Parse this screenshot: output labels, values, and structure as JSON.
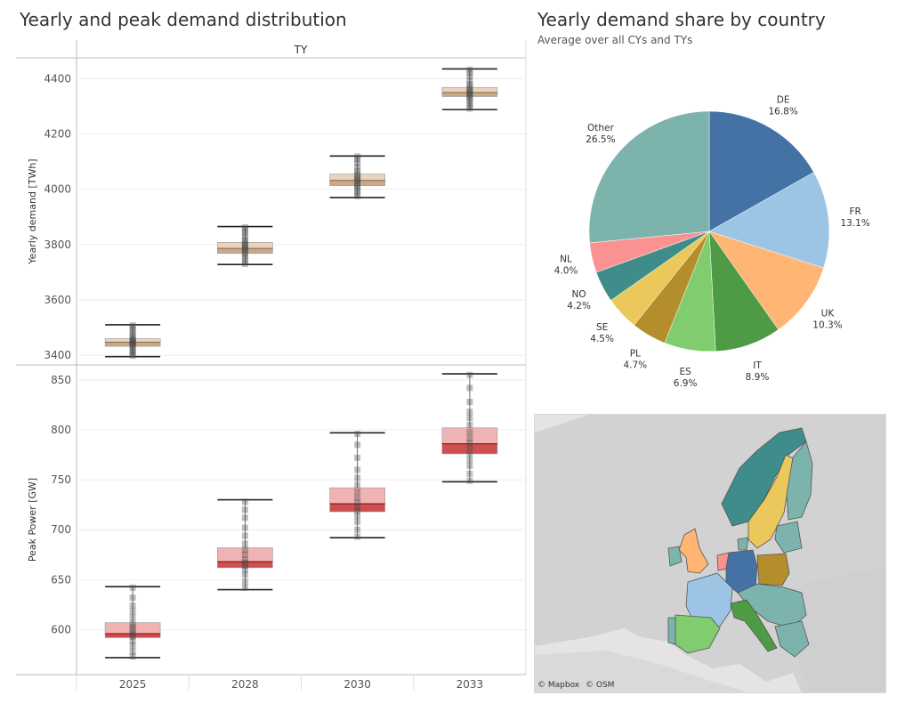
{
  "left_panel": {
    "title": "Yearly and peak demand distribution",
    "column_header": "TY"
  },
  "right_panel": {
    "title": "Yearly demand share by country",
    "subtitle": "Average over all CYs and TYs"
  },
  "map": {
    "attribution_mapbox": "© Mapbox",
    "attribution_osm": "© OSM"
  },
  "chart_data": [
    {
      "type": "box",
      "name": "yearly_demand",
      "ylabel": "Yearly demand [TWh]",
      "categories": [
        "2025",
        "2028",
        "2030",
        "2033"
      ],
      "ylim": [
        3365,
        4475
      ],
      "yticks": [
        3400,
        3600,
        3800,
        4000,
        4200,
        4400
      ],
      "colors": {
        "box_light": "#e8d3bf",
        "box_dark": "#c9a78a",
        "median": "#8a6a4a",
        "whisker": "#222222"
      },
      "boxes": [
        {
          "category": "2025",
          "min": 3395,
          "q1": 3432,
          "median": 3447,
          "q3": 3460,
          "max": 3510,
          "points": [
            3398,
            3405,
            3412,
            3420,
            3428,
            3435,
            3440,
            3445,
            3448,
            3452,
            3456,
            3462,
            3470,
            3480,
            3490,
            3500,
            3508
          ]
        },
        {
          "category": "2028",
          "min": 3728,
          "q1": 3768,
          "median": 3786,
          "q3": 3808,
          "max": 3865,
          "points": [
            3730,
            3740,
            3752,
            3762,
            3770,
            3778,
            3784,
            3790,
            3796,
            3802,
            3810,
            3818,
            3830,
            3842,
            3852,
            3862
          ]
        },
        {
          "category": "2030",
          "min": 3970,
          "q1": 4013,
          "median": 4032,
          "q3": 4055,
          "max": 4120,
          "points": [
            3975,
            3985,
            3995,
            4005,
            4012,
            4020,
            4028,
            4034,
            4040,
            4048,
            4056,
            4066,
            4080,
            4095,
            4108,
            4118
          ]
        },
        {
          "category": "2033",
          "min": 4288,
          "q1": 4335,
          "median": 4350,
          "q3": 4368,
          "max": 4435,
          "points": [
            4292,
            4302,
            4312,
            4322,
            4330,
            4338,
            4345,
            4350,
            4356,
            4362,
            4370,
            4380,
            4392,
            4408,
            4420,
            4432
          ]
        }
      ]
    },
    {
      "type": "box",
      "name": "peak_power",
      "ylabel": "Peak Power [GW]",
      "categories": [
        "2025",
        "2028",
        "2030",
        "2033"
      ],
      "ylim": [
        555,
        865
      ],
      "yticks": [
        600,
        650,
        700,
        750,
        800,
        850
      ],
      "colors": {
        "box_light": "#f0b3b3",
        "box_dark": "#cc5050",
        "median": "#8b0000",
        "whisker": "#222222"
      },
      "boxes": [
        {
          "category": "2025",
          "min": 572,
          "q1": 592,
          "median": 596,
          "q3": 607,
          "max": 643,
          "points": [
            573,
            578,
            584,
            589,
            593,
            595,
            597,
            600,
            603,
            606,
            612,
            618,
            624,
            632,
            642
          ]
        },
        {
          "category": "2028",
          "min": 640,
          "q1": 662,
          "median": 668,
          "q3": 682,
          "max": 730,
          "points": [
            642,
            648,
            655,
            660,
            664,
            667,
            670,
            675,
            680,
            686,
            694,
            702,
            712,
            720,
            728
          ]
        },
        {
          "category": "2030",
          "min": 692,
          "q1": 718,
          "median": 726,
          "q3": 742,
          "max": 797,
          "points": [
            693,
            700,
            708,
            714,
            719,
            723,
            727,
            732,
            738,
            745,
            752,
            760,
            772,
            785,
            796
          ]
        },
        {
          "category": "2033",
          "min": 748,
          "q1": 776,
          "median": 786,
          "q3": 802,
          "max": 856,
          "points": [
            749,
            756,
            764,
            770,
            776,
            782,
            787,
            792,
            798,
            805,
            812,
            818,
            828,
            842,
            855
          ]
        }
      ]
    },
    {
      "type": "pie",
      "name": "demand_share",
      "slices": [
        {
          "label": "DE",
          "value": 16.8,
          "text": "16.8%",
          "color": "#4472a4"
        },
        {
          "label": "FR",
          "value": 13.1,
          "text": "13.1%",
          "color": "#9cc5e5"
        },
        {
          "label": "UK",
          "value": 10.3,
          "text": "10.3%",
          "color": "#ffb574"
        },
        {
          "label": "IT",
          "value": 8.9,
          "text": "8.9%",
          "color": "#4f9a44"
        },
        {
          "label": "ES",
          "value": 6.9,
          "text": "6.9%",
          "color": "#80cc6e"
        },
        {
          "label": "PL",
          "value": 4.7,
          "text": "4.7%",
          "color": "#b38e2b"
        },
        {
          "label": "SE",
          "value": 4.5,
          "text": "4.5%",
          "color": "#eac85b"
        },
        {
          "label": "NO",
          "value": 4.2,
          "text": "4.2%",
          "color": "#3e8d8b"
        },
        {
          "label": "NL",
          "value": 4.0,
          "text": "4.0%",
          "color": "#fb9292"
        },
        {
          "label": "Other",
          "value": 26.5,
          "text": "26.5%",
          "color": "#7cb4ad"
        }
      ]
    }
  ]
}
